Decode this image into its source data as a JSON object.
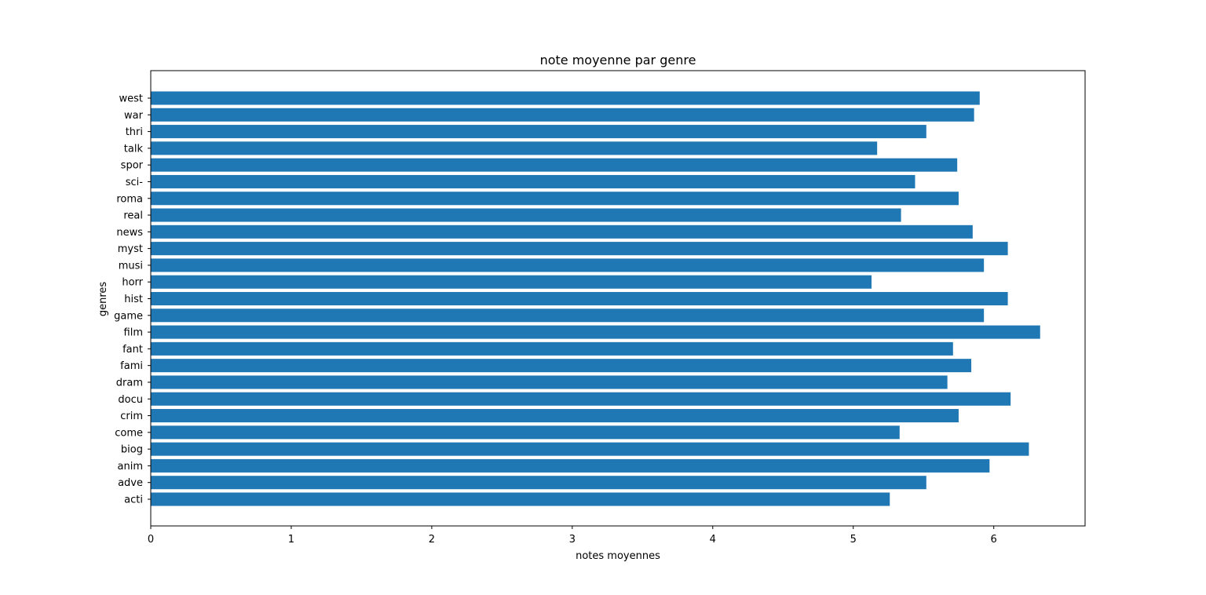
{
  "chart_data": {
    "type": "bar",
    "orientation": "horizontal",
    "title": "note moyenne par genre",
    "xlabel": "notes moyennes",
    "ylabel": "genres",
    "categories": [
      "acti",
      "adve",
      "anim",
      "biog",
      "come",
      "crim",
      "docu",
      "dram",
      "fami",
      "fant",
      "film",
      "game",
      "hist",
      "horr",
      "musi",
      "myst",
      "news",
      "real",
      "roma",
      "sci-",
      "spor",
      "talk",
      "thri",
      "war",
      "west"
    ],
    "values": [
      5.26,
      5.52,
      5.97,
      6.25,
      5.33,
      5.75,
      6.12,
      5.67,
      5.84,
      5.71,
      6.33,
      5.93,
      6.1,
      5.13,
      5.93,
      6.1,
      5.85,
      5.34,
      5.75,
      5.44,
      5.74,
      5.17,
      5.52,
      5.86,
      5.9
    ],
    "xlim": [
      0,
      6.65
    ],
    "xticks": [
      "0",
      "1",
      "2",
      "3",
      "4",
      "5",
      "6"
    ],
    "grid": false,
    "legend": "none",
    "bar_color": "#1f77b4"
  }
}
